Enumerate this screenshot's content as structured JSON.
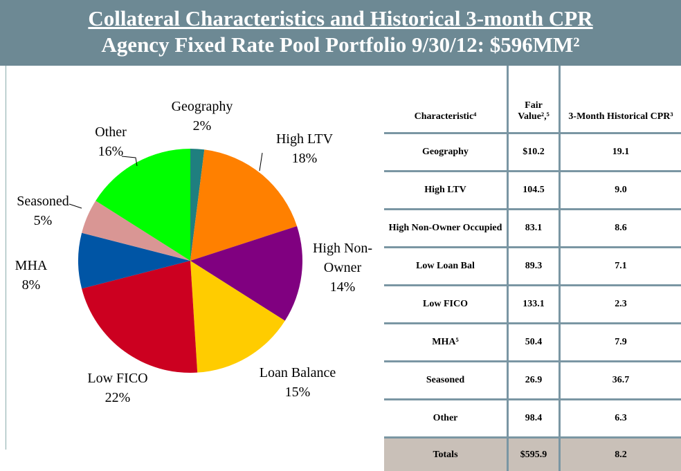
{
  "header": {
    "title": "Collateral Characteristics and Historical 3-month CPR",
    "subtitle": "Agency Fixed Rate Pool Portfolio 9/30/12: $596MM²"
  },
  "chart_data": {
    "type": "pie",
    "categories": [
      "Geography",
      "High LTV",
      "High Non-Owner",
      "Loan Balance",
      "Low FICO",
      "MHA",
      "Seasoned",
      "Other"
    ],
    "values": [
      2,
      18,
      14,
      15,
      22,
      8,
      5,
      16
    ],
    "value_labels": [
      "2%",
      "18%",
      "14%",
      "15%",
      "22%",
      "8%",
      "5%",
      "16%"
    ],
    "colors": [
      "#1f7f7f",
      "#ff8000",
      "#800080",
      "#ffcc00",
      "#cc0020",
      "#0055a5",
      "#d99694",
      "#00ff00"
    ]
  },
  "table": {
    "columns": [
      "Characteristic⁴",
      "Fair Value²,⁵",
      "3-Month Historical CPR³"
    ],
    "rows": [
      [
        "Geography",
        "$10.2",
        "19.1"
      ],
      [
        "High LTV",
        "104.5",
        "9.0"
      ],
      [
        "High Non-Owner Occupied",
        "83.1",
        "8.6"
      ],
      [
        "Low Loan Bal",
        "89.3",
        "7.1"
      ],
      [
        "Low FICO",
        "133.1",
        "2.3"
      ],
      [
        "MHA⁵",
        "50.4",
        "7.9"
      ],
      [
        "Seasoned",
        "26.9",
        "36.7"
      ],
      [
        "Other",
        "98.4",
        "6.3"
      ]
    ],
    "totals": [
      "Totals",
      "$595.9",
      "8.2"
    ]
  }
}
